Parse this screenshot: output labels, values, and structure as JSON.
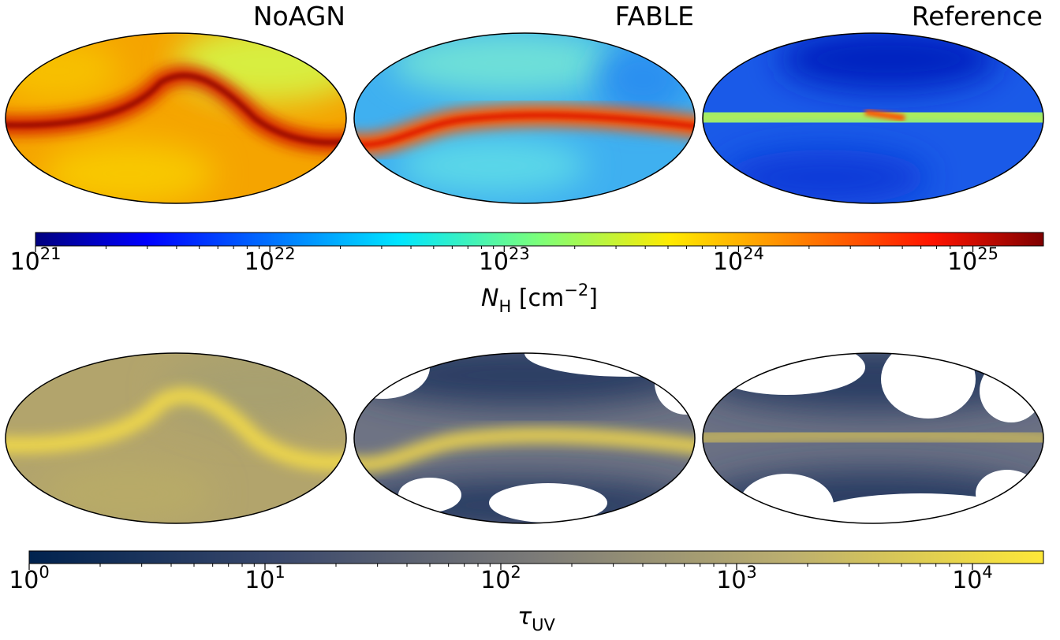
{
  "chart_data": {
    "type": "sky-maps",
    "panel_titles": [
      "NoAGN",
      "FABLE",
      "Reference"
    ],
    "colorbars": [
      {
        "label": [
          {
            "text": "N",
            "style": "italic"
          },
          {
            "text": "H",
            "style": "sub"
          },
          {
            "text": " [cm",
            "style": "normal"
          },
          {
            "text": "−2",
            "style": "sup"
          },
          {
            "text": "]",
            "style": "normal"
          }
        ],
        "colormap": "jet",
        "scale": "log",
        "lim": [
          1e+21,
          2e+25
        ],
        "ticks": [
          {
            "value": 1e+21,
            "label": "10",
            "exponent": "21"
          },
          {
            "value": 1e+22,
            "label": "10",
            "exponent": "22"
          },
          {
            "value": 1e+23,
            "label": "10",
            "exponent": "23"
          },
          {
            "value": 1e+24,
            "label": "10",
            "exponent": "24"
          },
          {
            "value": 1e+25,
            "label": "10",
            "exponent": "25"
          }
        ]
      },
      {
        "label": [
          {
            "text": "τ",
            "style": "italic"
          },
          {
            "text": "UV",
            "style": "sub"
          }
        ],
        "colormap": "cividis",
        "scale": "log",
        "lim": [
          1,
          20000
        ],
        "ticks": [
          {
            "value": 1,
            "label": "10",
            "exponent": "0"
          },
          {
            "value": 10,
            "label": "10",
            "exponent": "1"
          },
          {
            "value": 100,
            "label": "10",
            "exponent": "2"
          },
          {
            "value": 1000,
            "label": "10",
            "exponent": "3"
          },
          {
            "value": 10000,
            "label": "10",
            "exponent": "4"
          }
        ]
      }
    ]
  }
}
